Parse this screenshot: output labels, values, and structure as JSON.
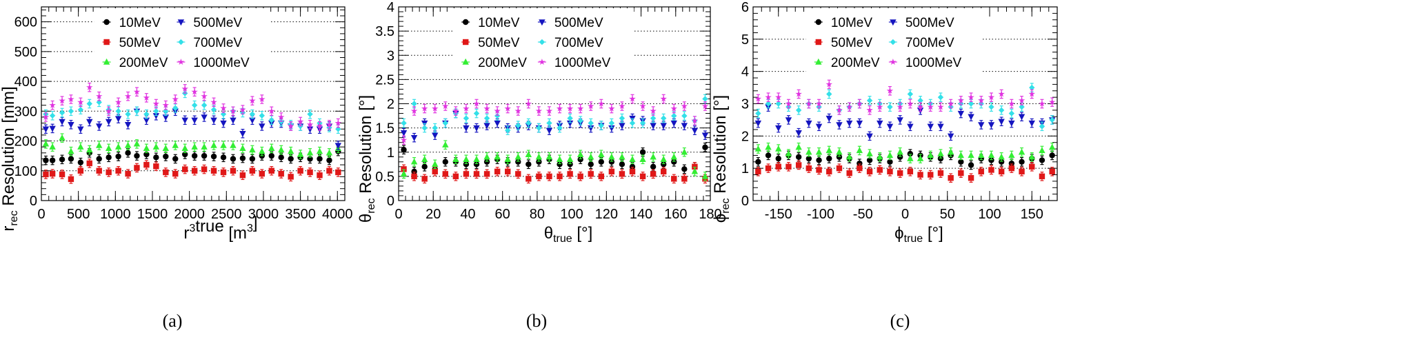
{
  "series_style": [
    {
      "name": "10MeV",
      "color": "#000000",
      "marker": "circle"
    },
    {
      "name": "50MeV",
      "color": "#e01818",
      "marker": "square"
    },
    {
      "name": "200MeV",
      "color": "#33ee33",
      "marker": "triangle-up"
    },
    {
      "name": "500MeV",
      "color": "#1515c0",
      "marker": "triangle-down"
    },
    {
      "name": "700MeV",
      "color": "#33e0e8",
      "marker": "diamond"
    },
    {
      "name": "1000MeV",
      "color": "#e033e0",
      "marker": "star"
    }
  ],
  "chart_data": [
    {
      "type": "scatter",
      "caption": "(a)",
      "ylabel": "r_rec Resolution [mm]",
      "xlabel": "r³_true [m³]",
      "xlim": [
        0,
        4100
      ],
      "ylim": [
        0,
        650
      ],
      "xticks": [
        0,
        500,
        1000,
        1500,
        2000,
        2500,
        3000,
        3500,
        4000
      ],
      "yticks": [
        0,
        100,
        200,
        300,
        400,
        500,
        600
      ],
      "grid": "horizontal dotted",
      "legend": "top",
      "x": [
        60,
        150,
        280,
        400,
        530,
        650,
        780,
        910,
        1040,
        1170,
        1290,
        1420,
        1550,
        1680,
        1810,
        1940,
        2070,
        2200,
        2330,
        2460,
        2590,
        2720,
        2850,
        2980,
        3110,
        3240,
        3370,
        3500,
        3630,
        3760,
        3890,
        4010
      ],
      "series": [
        {
          "name": "10MeV",
          "values": [
            135,
            135,
            138,
            140,
            128,
            160,
            140,
            145,
            148,
            160,
            150,
            155,
            145,
            148,
            140,
            155,
            150,
            150,
            148,
            145,
            140,
            142,
            140,
            150,
            150,
            145,
            140,
            145,
            140,
            140,
            135,
            165
          ]
        },
        {
          "name": "50MeV",
          "values": [
            88,
            90,
            88,
            72,
            100,
            125,
            100,
            95,
            100,
            90,
            110,
            120,
            115,
            95,
            90,
            105,
            100,
            105,
            100,
            95,
            100,
            85,
            100,
            90,
            100,
            90,
            80,
            100,
            95,
            85,
            100,
            95
          ]
        },
        {
          "name": "200MeV",
          "values": [
            190,
            180,
            210,
            165,
            180,
            170,
            185,
            175,
            180,
            185,
            190,
            175,
            180,
            175,
            185,
            175,
            180,
            180,
            185,
            185,
            185,
            175,
            170,
            165,
            175,
            170,
            165,
            155,
            160,
            165,
            160,
            175
          ]
        },
        {
          "name": "500MeV",
          "values": [
            240,
            242,
            265,
            255,
            240,
            265,
            250,
            265,
            275,
            255,
            300,
            270,
            285,
            280,
            300,
            270,
            270,
            280,
            270,
            260,
            270,
            225,
            270,
            250,
            260,
            260,
            250,
            250,
            240,
            240,
            250,
            185
          ]
        },
        {
          "name": "700MeV",
          "values": [
            290,
            285,
            295,
            300,
            305,
            325,
            330,
            305,
            300,
            290,
            300,
            290,
            300,
            300,
            310,
            360,
            320,
            320,
            305,
            290,
            300,
            295,
            290,
            285,
            270,
            265,
            255,
            250,
            290,
            260,
            245,
            240
          ]
        },
        {
          "name": "1000MeV",
          "values": [
            280,
            320,
            335,
            340,
            330,
            380,
            350,
            300,
            330,
            350,
            365,
            345,
            325,
            320,
            340,
            375,
            365,
            350,
            330,
            310,
            300,
            305,
            335,
            340,
            300,
            280,
            250,
            265,
            255,
            250,
            255,
            260
          ]
        }
      ]
    },
    {
      "type": "scatter",
      "caption": "(b)",
      "ylabel": "θ_rec Resolution [°]",
      "xlabel": "θ_true [°]",
      "xlim": [
        0,
        180
      ],
      "ylim": [
        0,
        4
      ],
      "xticks": [
        0,
        20,
        40,
        60,
        80,
        100,
        120,
        140,
        160,
        180
      ],
      "yticks": [
        0,
        0.5,
        1,
        1.5,
        2,
        2.5,
        3,
        3.5,
        4
      ],
      "grid": "horizontal dotted",
      "legend": "top",
      "x": [
        3,
        9,
        15,
        21,
        27,
        33,
        39,
        45,
        51,
        57,
        63,
        69,
        75,
        81,
        87,
        93,
        99,
        105,
        111,
        117,
        123,
        129,
        135,
        141,
        147,
        153,
        159,
        165,
        171,
        177
      ],
      "series": [
        {
          "name": "10MeV",
          "values": [
            1.05,
            0.6,
            0.7,
            0.65,
            0.8,
            0.8,
            0.75,
            0.75,
            0.8,
            0.85,
            0.8,
            0.8,
            0.75,
            0.8,
            0.85,
            0.75,
            0.75,
            0.85,
            0.75,
            0.8,
            0.8,
            0.75,
            0.7,
            1.0,
            0.7,
            0.75,
            0.8,
            0.65,
            0.7,
            1.1
          ]
        },
        {
          "name": "50MeV",
          "values": [
            0.65,
            0.5,
            0.45,
            0.6,
            0.55,
            0.5,
            0.55,
            0.55,
            0.55,
            0.6,
            0.6,
            0.55,
            0.45,
            0.5,
            0.5,
            0.5,
            0.55,
            0.5,
            0.55,
            0.5,
            0.6,
            0.55,
            0.6,
            0.5,
            0.55,
            0.6,
            0.45,
            0.45,
            0.7,
            0.45
          ]
        },
        {
          "name": "200MeV",
          "values": [
            0.55,
            0.8,
            0.85,
            0.75,
            1.15,
            0.85,
            0.85,
            0.85,
            0.9,
            0.9,
            0.85,
            0.9,
            0.95,
            0.9,
            0.9,
            0.85,
            0.85,
            0.95,
            0.9,
            0.95,
            0.9,
            0.9,
            0.85,
            0.85,
            0.9,
            0.85,
            0.9,
            1.0,
            0.6,
            0.5
          ]
        },
        {
          "name": "500MeV",
          "values": [
            1.4,
            1.3,
            1.6,
            1.35,
            1.6,
            1.8,
            1.5,
            1.5,
            1.55,
            1.6,
            1.5,
            1.5,
            1.55,
            1.5,
            1.45,
            1.55,
            1.6,
            1.6,
            1.5,
            1.55,
            1.5,
            1.55,
            1.7,
            1.65,
            1.55,
            1.55,
            1.6,
            1.55,
            1.45,
            1.35
          ]
        },
        {
          "name": "700MeV",
          "values": [
            1.6,
            2.0,
            1.5,
            1.5,
            1.6,
            1.8,
            1.7,
            1.8,
            1.7,
            1.75,
            1.45,
            1.55,
            1.6,
            1.5,
            1.6,
            1.5,
            1.7,
            1.65,
            1.6,
            1.55,
            1.6,
            1.7,
            1.6,
            1.6,
            1.7,
            1.7,
            1.75,
            1.75,
            1.65,
            2.1
          ]
        },
        {
          "name": "1000MeV",
          "values": [
            1.25,
            1.85,
            1.9,
            1.9,
            1.95,
            1.85,
            1.9,
            2.0,
            1.9,
            1.85,
            1.9,
            1.85,
            2.0,
            1.85,
            1.85,
            1.9,
            1.9,
            1.9,
            1.95,
            2.0,
            1.9,
            1.95,
            2.1,
            1.95,
            1.85,
            2.1,
            1.9,
            1.95,
            1.65,
            1.95
          ]
        }
      ]
    },
    {
      "type": "scatter",
      "caption": "(c)",
      "ylabel": "ϕ_rec Resolution [°]",
      "xlabel": "ϕ_true [°]",
      "xlim": [
        -180,
        180
      ],
      "ylim": [
        0,
        6
      ],
      "xticks": [
        -150,
        -100,
        -50,
        0,
        50,
        100,
        150
      ],
      "yticks": [
        0,
        1,
        2,
        3,
        4,
        5,
        6
      ],
      "grid": "horizontal dotted",
      "legend": "top",
      "x": [
        -174,
        -162,
        -150,
        -138,
        -126,
        -114,
        -102,
        -90,
        -78,
        -66,
        -54,
        -42,
        -30,
        -18,
        -6,
        6,
        18,
        30,
        42,
        54,
        66,
        78,
        90,
        102,
        114,
        126,
        138,
        150,
        162,
        174
      ],
      "series": [
        {
          "name": "10MeV",
          "values": [
            1.2,
            1.4,
            1.3,
            1.4,
            1.35,
            1.3,
            1.25,
            1.3,
            1.35,
            1.3,
            1.15,
            1.25,
            1.3,
            1.2,
            1.35,
            1.45,
            1.4,
            1.35,
            1.3,
            1.4,
            1.2,
            1.1,
            1.3,
            1.25,
            1.2,
            1.15,
            1.2,
            1.3,
            1.25,
            1.4
          ]
        },
        {
          "name": "50MeV",
          "values": [
            0.9,
            1.0,
            1.05,
            1.05,
            1.1,
            1.0,
            0.95,
            0.9,
            1.0,
            0.85,
            1.0,
            0.9,
            0.95,
            0.9,
            0.85,
            0.9,
            0.8,
            0.8,
            0.85,
            0.7,
            0.85,
            0.7,
            0.9,
            0.95,
            0.9,
            1.0,
            0.9,
            1.05,
            0.75,
            0.9
          ]
        },
        {
          "name": "200MeV",
          "values": [
            1.6,
            1.65,
            1.6,
            1.45,
            1.65,
            1.5,
            1.5,
            1.55,
            1.5,
            1.35,
            1.55,
            1.45,
            1.35,
            1.4,
            1.5,
            1.3,
            1.3,
            1.4,
            1.45,
            1.5,
            1.4,
            1.4,
            1.4,
            1.4,
            1.35,
            1.4,
            1.5,
            1.35,
            1.55,
            1.65
          ]
        },
        {
          "name": "500MeV",
          "values": [
            2.4,
            2.9,
            2.25,
            2.5,
            2.1,
            2.4,
            2.3,
            2.55,
            2.35,
            2.4,
            2.4,
            2.0,
            2.4,
            2.3,
            2.5,
            2.3,
            2.8,
            2.3,
            2.3,
            2.0,
            2.7,
            2.6,
            2.35,
            2.35,
            2.45,
            2.4,
            2.6,
            2.4,
            2.4,
            2.5
          ]
        },
        {
          "name": "700MeV",
          "values": [
            2.7,
            3.0,
            3.0,
            2.9,
            2.8,
            3.0,
            2.9,
            3.3,
            2.8,
            2.9,
            3.0,
            3.1,
            3.0,
            2.9,
            3.0,
            3.3,
            3.1,
            3.0,
            3.2,
            2.9,
            3.0,
            3.0,
            3.0,
            2.9,
            2.8,
            2.7,
            2.9,
            3.5,
            2.3,
            2.5
          ]
        },
        {
          "name": "1000MeV",
          "values": [
            3.15,
            3.2,
            3.2,
            3.0,
            3.3,
            3.0,
            3.0,
            3.6,
            2.8,
            2.9,
            3.0,
            2.8,
            2.9,
            3.4,
            2.9,
            3.0,
            2.9,
            2.9,
            2.9,
            3.0,
            3.1,
            3.2,
            3.1,
            3.2,
            3.3,
            3.0,
            3.1,
            3.3,
            3.0,
            3.05
          ]
        }
      ]
    }
  ]
}
